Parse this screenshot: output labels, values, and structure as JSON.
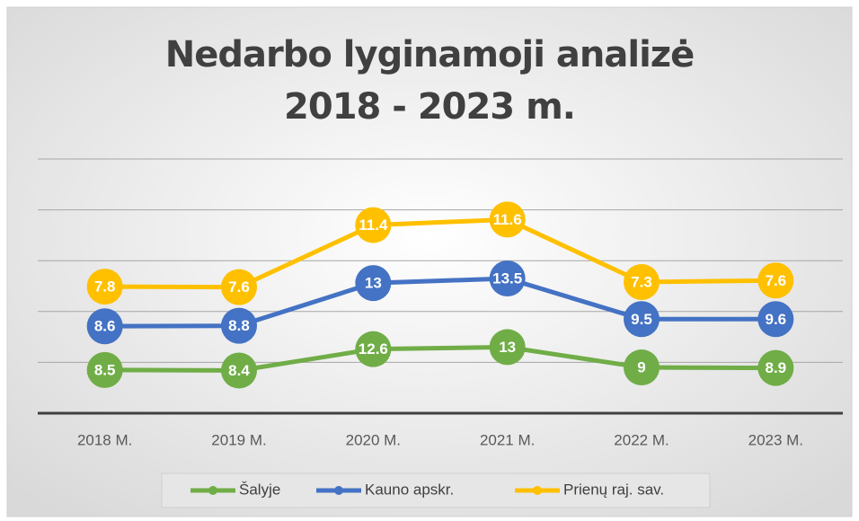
{
  "chart_data": {
    "type": "line",
    "stacked": true,
    "title": "Nedarbo lyginamoji analizė 2018 - 2023 m.",
    "categories": [
      "2018 M.",
      "2019 M.",
      "2020 M.",
      "2021 M.",
      "2022 M.",
      "2023 M."
    ],
    "series": [
      {
        "name": "Šalyje",
        "color": "#70ad47",
        "values": [
          8.5,
          8.4,
          12.6,
          13,
          9,
          8.9
        ]
      },
      {
        "name": "Kauno apskr.",
        "color": "#4472c4",
        "values": [
          8.6,
          8.8,
          13,
          13.5,
          9.5,
          9.6
        ]
      },
      {
        "name": "Prienų raj. sav.",
        "color": "#ffc000",
        "values": [
          7.8,
          7.6,
          11.4,
          11.6,
          7.3,
          7.6
        ]
      }
    ],
    "ylim": [
      0,
      50
    ],
    "yticks": [
      0,
      10,
      20,
      30,
      40,
      50
    ],
    "grid": true,
    "legend": "bottom"
  }
}
